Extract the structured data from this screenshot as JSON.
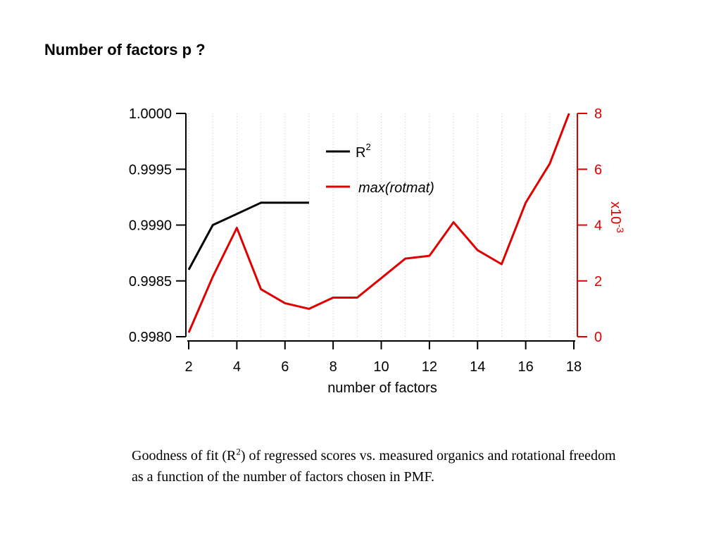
{
  "title": "Number of factors p ?",
  "caption": {
    "before": "Goodness of fit (R",
    "sup": "2",
    "after": ") of regressed scores vs. measured organics and rotational freedom as a function of the number of factors chosen in PMF."
  },
  "chart_data": {
    "type": "line",
    "xlabel": "number of factors",
    "x_ticks": [
      "2",
      "4",
      "6",
      "8",
      "10",
      "12",
      "14",
      "16",
      "18"
    ],
    "xlim": [
      2,
      18
    ],
    "y_left": {
      "ylim": [
        0.998,
        1.0
      ],
      "ticks": [
        "0.9980",
        "0.9985",
        "0.9990",
        "0.9995",
        "1.0000"
      ],
      "color": "#000000"
    },
    "y_right": {
      "ylim": [
        0,
        8
      ],
      "ticks": [
        "0",
        "2",
        "4",
        "6",
        "8"
      ],
      "label_base": "x10",
      "label_exp": "-3",
      "color": "#e00000"
    },
    "grid": "vertical dotted",
    "series": [
      {
        "name": "R",
        "name_sup": "2",
        "italic": false,
        "axis": "left",
        "color": "#000000",
        "x": [
          2,
          3,
          4,
          5,
          6,
          7
        ],
        "y": [
          0.9986,
          0.999,
          0.9991,
          0.9992,
          0.9992,
          0.9992
        ]
      },
      {
        "name": "max(rotmat)",
        "name_sup": "",
        "italic": true,
        "axis": "right",
        "color": "#e00000",
        "x": [
          2,
          3,
          4,
          5,
          6,
          7,
          8,
          9,
          10,
          11,
          12,
          13,
          14,
          15,
          16,
          17,
          17.8
        ],
        "y": [
          0.15,
          2.15,
          3.9,
          1.7,
          1.2,
          1.0,
          1.4,
          1.4,
          2.1,
          2.8,
          2.9,
          4.1,
          3.1,
          2.6,
          4.8,
          6.2,
          8.0
        ]
      }
    ]
  }
}
